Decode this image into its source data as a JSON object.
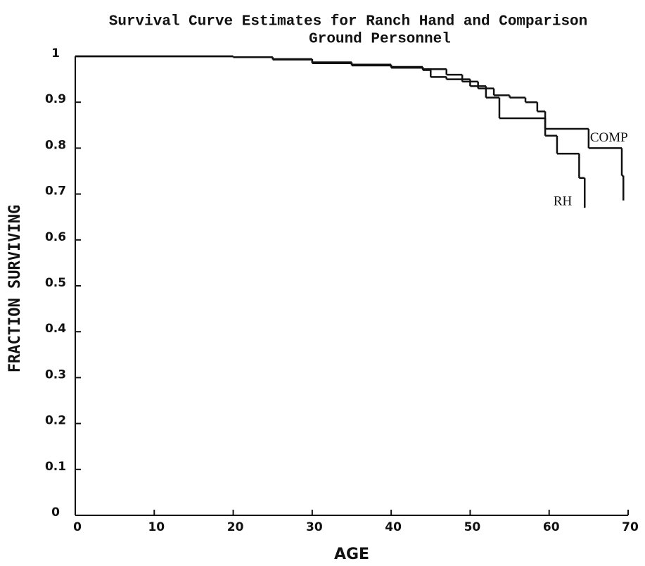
{
  "chart_data": {
    "type": "step",
    "title": [
      "Survival Curve Estimates for Ranch Hand and Comparison",
      "Ground Personnel"
    ],
    "x_label": "AGE",
    "y_label": "FRACTION SURVIVING",
    "xlim": [
      0,
      70
    ],
    "xticks": [
      0,
      10,
      20,
      30,
      40,
      50,
      60,
      70
    ],
    "ylim": [
      0,
      1
    ],
    "yticks": [
      0,
      0.1,
      0.2,
      0.3,
      0.4,
      0.5,
      0.6,
      0.7,
      0.8,
      0.9,
      1
    ],
    "series": [
      {
        "name": "RH",
        "color": "#111111",
        "x": [
          0,
          20,
          25,
          30,
          35,
          40,
          44,
          45,
          47,
          50,
          52,
          53.7,
          59.5,
          61,
          63.8,
          64.5
        ],
        "values": [
          1,
          0.998,
          0.993,
          0.985,
          0.98,
          0.975,
          0.97,
          0.955,
          0.95,
          0.935,
          0.91,
          0.865,
          0.827,
          0.788,
          0.735,
          0.67
        ]
      },
      {
        "name": "COMP",
        "color": "#111111",
        "x": [
          0,
          20,
          25,
          30,
          35,
          40,
          44,
          47,
          49,
          51,
          53,
          55,
          57,
          58.5,
          59.5,
          65,
          69.2,
          69.4
        ],
        "values": [
          1,
          0.998,
          0.994,
          0.987,
          0.982,
          0.977,
          0.972,
          0.96,
          0.945,
          0.93,
          0.915,
          0.91,
          0.9,
          0.88,
          0.842,
          0.8,
          0.74,
          0.686
        ]
      }
    ]
  }
}
